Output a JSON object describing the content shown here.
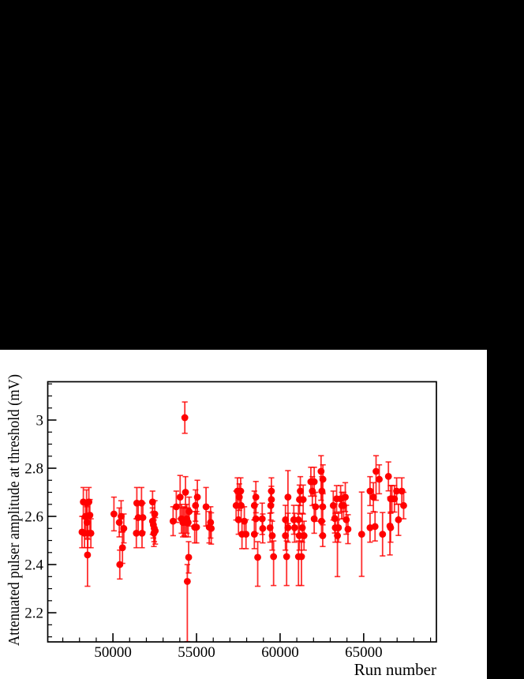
{
  "page": {
    "background_color": "#ffffff",
    "top_band_color": "#000000",
    "right_band_color": "#000000",
    "frame_color": "#000000"
  },
  "chart_data": {
    "type": "scatter",
    "title": "",
    "xlabel": "Run number",
    "ylabel": "Attenuated pulser amplitude at threshold (mV)",
    "xlim": [
      46100,
      69350
    ],
    "ylim": [
      2.079,
      3.159
    ],
    "x_major_ticks": [
      50000,
      55000,
      60000,
      65000
    ],
    "x_tick_labels": [
      "50000",
      "55000",
      "60000",
      "65000"
    ],
    "x_minor_step": 1000,
    "y_major_ticks": [
      2.2,
      2.4,
      2.6,
      2.8,
      3
    ],
    "y_tick_labels": [
      "2.2",
      "2.4",
      "2.6",
      "2.8",
      "3"
    ],
    "y_minor_step": 0.05,
    "grid": false,
    "legend": null,
    "marker_color": "#ff0000",
    "marker_style": "filled-circle-with-error-bars",
    "series": [
      {
        "name": "attenuated-pulser-amplitude-vs-run",
        "point_format": "[run, mV, errUp, errDownOptional]",
        "points": [
          [
            48150,
            2.535,
            0.065
          ],
          [
            48230,
            2.66,
            0.06
          ],
          [
            48300,
            2.53,
            0.06
          ],
          [
            48360,
            2.6,
            0.06
          ],
          [
            48420,
            2.655,
            0.055
          ],
          [
            48450,
            2.575,
            0.065
          ],
          [
            48500,
            2.53,
            0.06
          ],
          [
            48560,
            2.66,
            0.06
          ],
          [
            48620,
            2.605,
            0.065
          ],
          [
            48480,
            2.44,
            0.065,
            0.13
          ],
          [
            48680,
            2.53,
            0.06
          ],
          [
            50060,
            2.61,
            0.07
          ],
          [
            50380,
            2.575,
            0.06
          ],
          [
            50490,
            2.6,
            0.065
          ],
          [
            50410,
            2.4,
            0.06
          ],
          [
            50570,
            2.47,
            0.065
          ],
          [
            50650,
            2.55,
            0.06
          ],
          [
            51400,
            2.53,
            0.06
          ],
          [
            51430,
            2.655,
            0.065
          ],
          [
            51510,
            2.595,
            0.06
          ],
          [
            51710,
            2.655,
            0.065
          ],
          [
            51740,
            2.53,
            0.06
          ],
          [
            51790,
            2.595,
            0.06
          ],
          [
            52370,
            2.66,
            0.045
          ],
          [
            52370,
            2.58,
            0.055
          ],
          [
            52420,
            2.565,
            0.055
          ],
          [
            52450,
            2.53,
            0.055
          ],
          [
            52470,
            2.55,
            0.055
          ],
          [
            52500,
            2.61,
            0.055
          ],
          [
            52530,
            2.54,
            0.055
          ],
          [
            53600,
            2.58,
            0.06
          ],
          [
            53790,
            2.64,
            0.065
          ],
          [
            54020,
            2.68,
            0.09
          ],
          [
            54100,
            2.59,
            0.06
          ],
          [
            54180,
            2.575,
            0.06
          ],
          [
            54260,
            2.58,
            0.06
          ],
          [
            54300,
            3.01,
            0.065
          ],
          [
            54340,
            2.7,
            0.065
          ],
          [
            54340,
            2.575,
            0.06
          ],
          [
            54420,
            2.59,
            0.06
          ],
          [
            54500,
            2.575,
            0.06
          ],
          [
            54560,
            2.62,
            0.06
          ],
          [
            54530,
            2.43,
            0.065
          ],
          [
            54450,
            2.33,
            0.07,
            0.25
          ],
          [
            54890,
            2.555,
            0.065
          ],
          [
            54940,
            2.645,
            0.065
          ],
          [
            55050,
            2.68,
            0.07
          ],
          [
            55000,
            2.555,
            0.065
          ],
          [
            55570,
            2.64,
            0.08
          ],
          [
            55760,
            2.555,
            0.065
          ],
          [
            55840,
            2.575,
            0.065
          ],
          [
            55880,
            2.55,
            0.065
          ],
          [
            57370,
            2.645,
            0.06
          ],
          [
            57450,
            2.705,
            0.055
          ],
          [
            57510,
            2.586,
            0.06
          ],
          [
            57560,
            2.68,
            0.055
          ],
          [
            57640,
            2.705,
            0.055
          ],
          [
            57670,
            2.645,
            0.06
          ],
          [
            57720,
            2.526,
            0.06
          ],
          [
            57860,
            2.58,
            0.06
          ],
          [
            57960,
            2.526,
            0.06
          ],
          [
            58460,
            2.645,
            0.06
          ],
          [
            58460,
            2.526,
            0.06
          ],
          [
            58550,
            2.68,
            0.065
          ],
          [
            58550,
            2.59,
            0.06
          ],
          [
            58660,
            2.43,
            0.065,
            0.12
          ],
          [
            58930,
            2.59,
            0.065
          ],
          [
            58960,
            2.55,
            0.06
          ],
          [
            59400,
            2.553,
            0.06
          ],
          [
            59440,
            2.645,
            0.06
          ],
          [
            59480,
            2.705,
            0.055
          ],
          [
            59480,
            2.67,
            0.055
          ],
          [
            59530,
            2.52,
            0.06
          ],
          [
            59610,
            2.433,
            0.065,
            0.12
          ],
          [
            60320,
            2.586,
            0.06
          ],
          [
            60320,
            2.52,
            0.06
          ],
          [
            60470,
            2.68,
            0.11
          ],
          [
            60470,
            2.553,
            0.06
          ],
          [
            60390,
            2.433,
            0.065,
            0.12
          ],
          [
            60820,
            2.586,
            0.06
          ],
          [
            60870,
            2.553,
            0.06
          ],
          [
            61100,
            2.586,
            0.06
          ],
          [
            61100,
            2.433,
            0.065,
            0.12
          ],
          [
            61150,
            2.52,
            0.06
          ],
          [
            61160,
            2.67,
            0.06
          ],
          [
            61210,
            2.705,
            0.06
          ],
          [
            61280,
            2.433,
            0.065,
            0.12
          ],
          [
            61330,
            2.553,
            0.06
          ],
          [
            61380,
            2.67,
            0.06
          ],
          [
            61430,
            2.52,
            0.06
          ],
          [
            61840,
            2.744,
            0.06
          ],
          [
            61930,
            2.705,
            0.06
          ],
          [
            62040,
            2.744,
            0.06
          ],
          [
            62040,
            2.59,
            0.06
          ],
          [
            62120,
            2.64,
            0.06
          ],
          [
            62450,
            2.787,
            0.065,
            0.12
          ],
          [
            62500,
            2.705,
            0.06
          ],
          [
            62480,
            2.58,
            0.06
          ],
          [
            62550,
            2.64,
            0.06
          ],
          [
            62550,
            2.52,
            0.045
          ],
          [
            62560,
            2.754,
            0.06
          ],
          [
            63180,
            2.645,
            0.06
          ],
          [
            63270,
            2.591,
            0.06
          ],
          [
            63300,
            2.553,
            0.06
          ],
          [
            63380,
            2.673,
            0.055
          ],
          [
            63430,
            2.52,
            0.065,
            0.17
          ],
          [
            63490,
            2.553,
            0.06
          ],
          [
            63620,
            2.673,
            0.055
          ],
          [
            63690,
            2.645,
            0.055
          ],
          [
            63800,
            2.645,
            0.055
          ],
          [
            63900,
            2.68,
            0.06
          ],
          [
            63960,
            2.586,
            0.06
          ],
          [
            64060,
            2.547,
            0.06
          ],
          [
            64880,
            2.526,
            0.175
          ],
          [
            65380,
            2.705,
            0.06
          ],
          [
            65380,
            2.553,
            0.06
          ],
          [
            65580,
            2.68,
            0.06
          ],
          [
            65680,
            2.558,
            0.06
          ],
          [
            65740,
            2.787,
            0.065,
            0.12
          ],
          [
            65930,
            2.754,
            0.06
          ],
          [
            66130,
            2.526,
            0.09
          ],
          [
            66480,
            2.766,
            0.06
          ],
          [
            66570,
            2.56,
            0.12
          ],
          [
            66610,
            2.673,
            0.055
          ],
          [
            66610,
            2.553,
            0.06
          ],
          [
            66690,
            2.673,
            0.055
          ],
          [
            66840,
            2.673,
            0.055
          ],
          [
            66970,
            2.705,
            0.055
          ],
          [
            67080,
            2.586,
            0.065
          ],
          [
            67280,
            2.705,
            0.055
          ],
          [
            67390,
            2.645,
            0.055
          ]
        ]
      }
    ]
  }
}
